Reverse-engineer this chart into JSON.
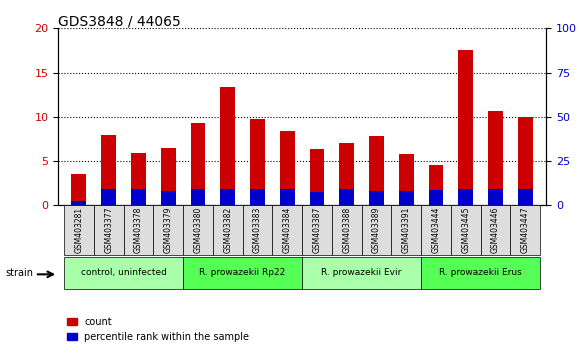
{
  "title": "GDS3848 / 44065",
  "samples": [
    "GSM403281",
    "GSM403377",
    "GSM403378",
    "GSM403379",
    "GSM403380",
    "GSM403382",
    "GSM403383",
    "GSM403384",
    "GSM403387",
    "GSM403388",
    "GSM403389",
    "GSM403391",
    "GSM403444",
    "GSM403445",
    "GSM403446",
    "GSM403447"
  ],
  "count_values": [
    3.5,
    8.0,
    5.9,
    6.5,
    9.3,
    13.4,
    9.8,
    8.4,
    6.4,
    7.0,
    7.8,
    5.8,
    4.6,
    17.6,
    10.7,
    10.0
  ],
  "percentile_values": [
    0.5,
    1.8,
    1.8,
    1.6,
    1.9,
    1.9,
    1.9,
    1.9,
    1.5,
    1.8,
    1.6,
    1.6,
    1.7,
    1.9,
    1.8,
    1.9
  ],
  "count_color": "#cc0000",
  "percentile_color": "#0000cc",
  "ylim_left": [
    0,
    20
  ],
  "ylim_right": [
    0,
    100
  ],
  "yticks_left": [
    0,
    5,
    10,
    15,
    20
  ],
  "yticks_right": [
    0,
    25,
    50,
    75,
    100
  ],
  "groups": [
    {
      "label": "control, uninfected",
      "start": 0,
      "end": 4,
      "color": "#aaffaa"
    },
    {
      "label": "R. prowazekii Rp22",
      "start": 4,
      "end": 8,
      "color": "#55ff55"
    },
    {
      "label": "R. prowazekii Evir",
      "start": 8,
      "end": 12,
      "color": "#aaffaa"
    },
    {
      "label": "R. prowazekii Erus",
      "start": 12,
      "end": 16,
      "color": "#55ff55"
    }
  ],
  "legend_count_label": "count",
  "legend_percentile_label": "percentile rank within the sample",
  "strain_label": "strain",
  "bar_width": 0.5,
  "grid_linestyle": "dotted",
  "grid_color": "#000000",
  "background_color": "#ffffff",
  "tick_label_color_left": "#cc0000",
  "tick_label_color_right": "#0000cc",
  "axis_label_size": 8,
  "title_size": 10
}
